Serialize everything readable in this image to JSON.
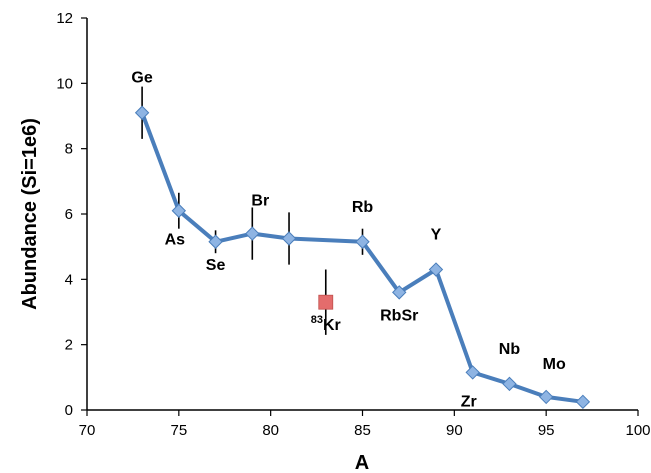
{
  "chart_data": {
    "type": "scatter",
    "title": "",
    "xlabel": "A",
    "ylabel": "Abundance (Si=1e6)",
    "xlim": [
      70,
      100
    ],
    "ylim": [
      0,
      12
    ],
    "xticks": [
      "70",
      "75",
      "80",
      "85",
      "90",
      "95",
      "100"
    ],
    "yticks": [
      "0",
      "2",
      "4",
      "6",
      "8",
      "10",
      "12"
    ],
    "grid": false,
    "legend": "none",
    "series": [
      {
        "color": "#4A7EBB",
        "marker_color": "#8EB4E3",
        "marker": "diamond",
        "line": true,
        "points": [
          {
            "x": 73,
            "y": 9.1,
            "err": 0.8
          },
          {
            "x": 75,
            "y": 6.1,
            "err": 0.55
          },
          {
            "x": 77,
            "y": 5.15,
            "err": 0.35
          },
          {
            "x": 79,
            "y": 5.4,
            "err": 0.8
          },
          {
            "x": 81,
            "y": 5.25,
            "err": 0.8
          },
          {
            "x": 85,
            "y": 5.15,
            "err": 0.4
          },
          {
            "x": 87,
            "y": 3.6,
            "err": 0.0
          },
          {
            "x": 89,
            "y": 4.3,
            "err": 0.0
          },
          {
            "x": 91,
            "y": 1.15,
            "err": 0.0
          },
          {
            "x": 93,
            "y": 0.8,
            "err": 0.0
          },
          {
            "x": 95,
            "y": 0.4,
            "err": 0.0
          },
          {
            "x": 97,
            "y": 0.25,
            "err": 0.0
          }
        ]
      },
      {
        "color": "#E46C6C",
        "marker": "square",
        "line": false,
        "points": [
          {
            "x": 83,
            "y": 3.3,
            "err": 1.0
          }
        ]
      }
    ],
    "annotations": [
      {
        "text": "Ge",
        "x": 73,
        "y": 9.1,
        "anchor": "above"
      },
      {
        "text": "As",
        "x": 75,
        "y": 6.1,
        "anchor": "below-left"
      },
      {
        "text": "Se",
        "x": 77,
        "y": 5.15,
        "anchor": "below"
      },
      {
        "text": "Br",
        "x": 79,
        "y": 5.4,
        "anchor": "above-right"
      },
      {
        "text": "Rb",
        "x": 85,
        "y": 5.15,
        "anchor": "above"
      },
      {
        "text": "RbSr",
        "x": 87,
        "y": 3.6,
        "anchor": "below"
      },
      {
        "text": "Y",
        "x": 89,
        "y": 4.3,
        "anchor": "above"
      },
      {
        "text": "Zr",
        "x": 91,
        "y": 1.15,
        "anchor": "below-left"
      },
      {
        "text": "Nb",
        "x": 93,
        "y": 0.8,
        "anchor": "above"
      },
      {
        "text": "Mo",
        "x": 95,
        "y": 0.4,
        "anchor": "above-right"
      },
      {
        "text": "Kr",
        "prefix": "83",
        "x": 83,
        "y": 3.3,
        "anchor": "below"
      }
    ]
  }
}
